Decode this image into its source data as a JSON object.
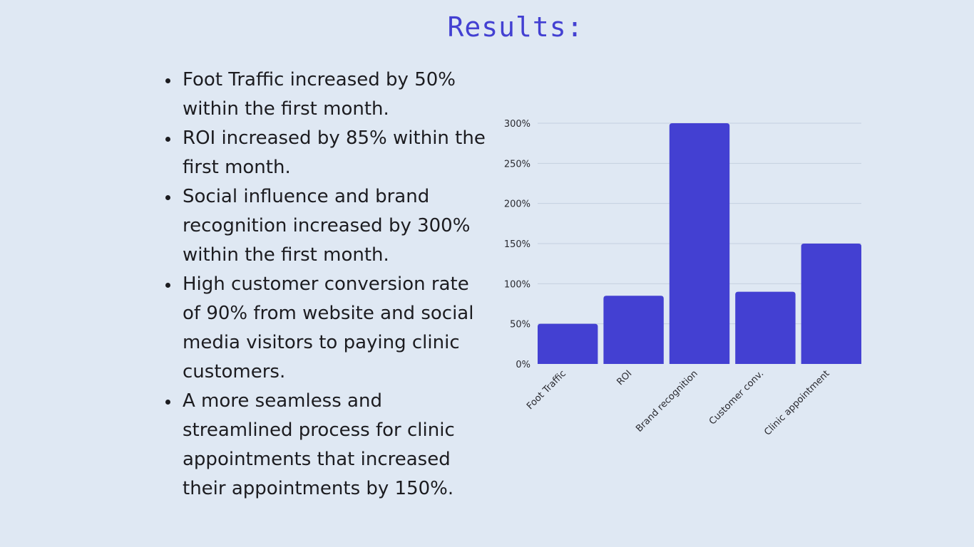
{
  "page": {
    "title": "Results:"
  },
  "bullets": [
    "Foot Traffic increased by 50% within the first month.",
    "ROI increased by 85% within the first month.",
    "Social influence and brand recognition increased by 300% within the first month.",
    "High customer conversion rate of 90% from website and social media visitors to paying clinic customers.",
    "A more seamless and streamlined process for clinic appointments that increased their appointments by 150%."
  ],
  "colors": {
    "background": "#dfe8f3",
    "accent": "#4340d2",
    "bar": "#4340d2",
    "text": "#1c1c20",
    "grid": "#c5d0e0"
  },
  "chart_data": {
    "type": "bar",
    "categories": [
      "Foot Traffic",
      "ROI",
      "Brand recognition",
      "Customer conv.",
      "Clinic appointment"
    ],
    "values": [
      50,
      85,
      300,
      90,
      150
    ],
    "yticks": [
      "0%",
      "50%",
      "100%",
      "150%",
      "200%",
      "250%",
      "300%"
    ],
    "ylim": [
      0,
      300
    ],
    "ytick_step": 50,
    "unit": "%",
    "grid": true,
    "legend": "none"
  }
}
